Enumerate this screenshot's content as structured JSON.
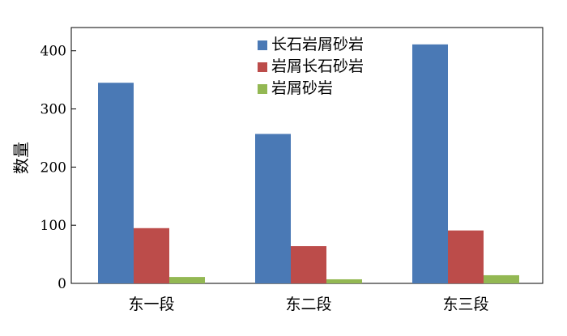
{
  "chart_data": {
    "type": "bar",
    "title": "",
    "xlabel": "",
    "ylabel": "数量",
    "ylim": [
      0,
      440
    ],
    "yticks": [
      0,
      100,
      200,
      300,
      400
    ],
    "grid": false,
    "legend_position": "top-center",
    "categories": [
      "东一段",
      "东二段",
      "东三段"
    ],
    "series": [
      {
        "name": "长石岩屑砂岩",
        "color": "#4a79b5",
        "values": [
          345,
          257,
          411
        ]
      },
      {
        "name": "岩屑长石砂岩",
        "color": "#bc4c4a",
        "values": [
          95,
          64,
          91
        ]
      },
      {
        "name": "岩屑砂岩",
        "color": "#93b853",
        "values": [
          11,
          7,
          14
        ]
      }
    ]
  }
}
